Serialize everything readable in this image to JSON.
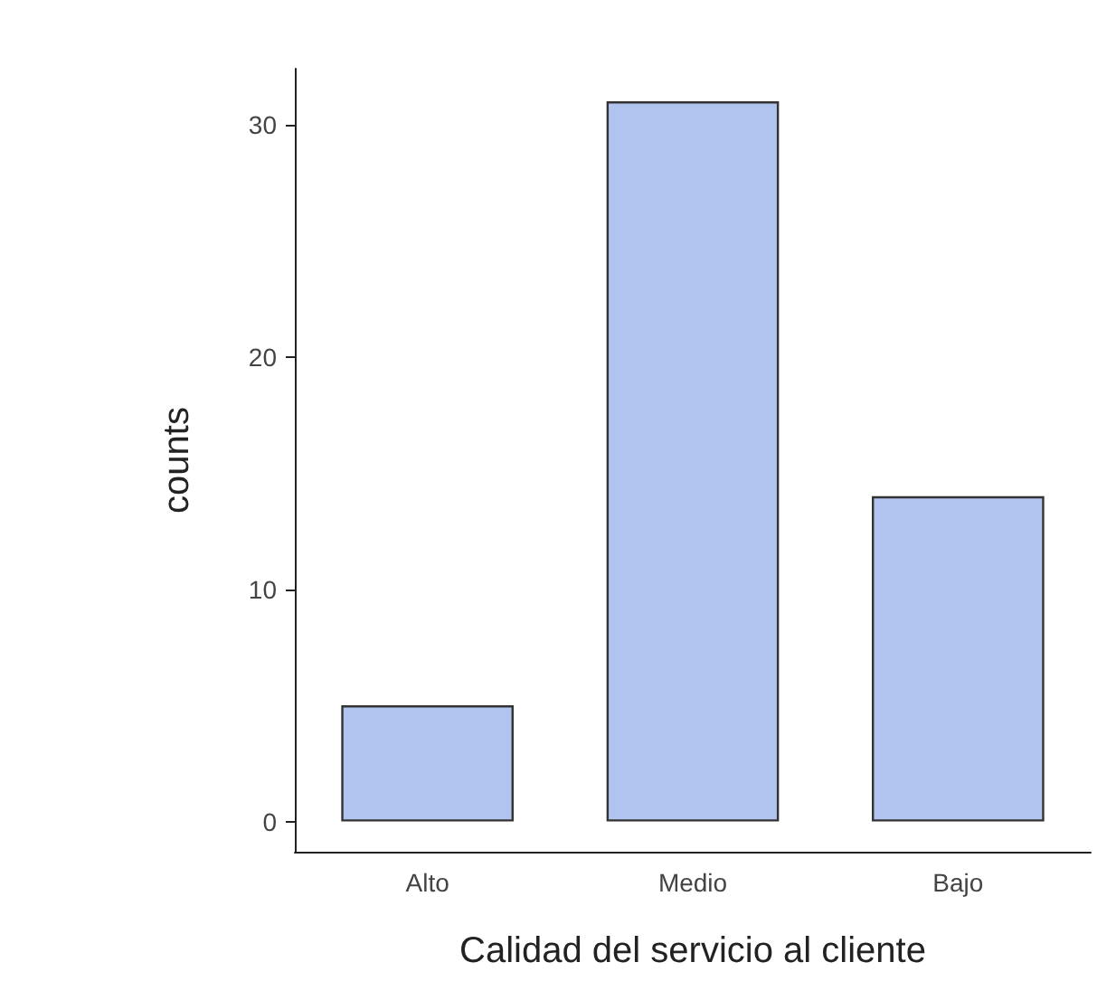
{
  "chart_data": {
    "type": "bar",
    "xlabel": "Calidad del servicio al cliente",
    "ylabel": "counts",
    "categories": [
      "Alto",
      "Medio",
      "Bajo"
    ],
    "values": [
      5,
      31,
      14
    ],
    "color": "#b0c4ef",
    "ylim": [
      -1.3,
      32.4
    ],
    "yticks": [
      0,
      10,
      20,
      30
    ]
  }
}
